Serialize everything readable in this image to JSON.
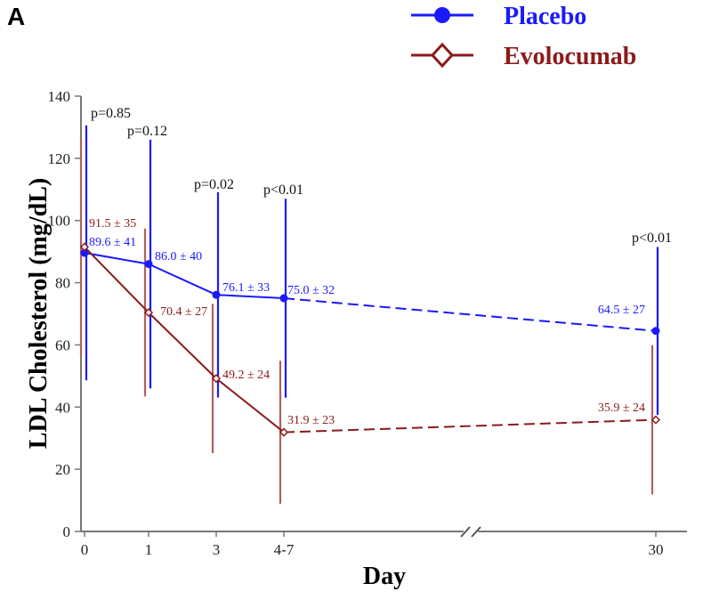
{
  "panel_label": "A",
  "colors": {
    "placebo": "#1a1aff",
    "evolocumab": "#8b1a1a",
    "evolocumab_errorbar": "#b06060",
    "axis": "#777777"
  },
  "chart_data": {
    "type": "line",
    "title": "",
    "xlabel": "Day",
    "ylabel": "LDL Cholesterol (mg/dL)",
    "ylim": [
      0,
      140
    ],
    "yticks": [
      0,
      20,
      40,
      60,
      80,
      100,
      120,
      140
    ],
    "categories": [
      "0",
      "1",
      "3",
      "4-7",
      "30"
    ],
    "axis_break_between": [
      "4-7",
      "30"
    ],
    "grid": false,
    "legend_position": "top-right",
    "series": [
      {
        "name": "Placebo",
        "marker": "filled-circle",
        "values": [
          89.6,
          86.0,
          76.1,
          75.0,
          64.5
        ],
        "sd": [
          41,
          40,
          33,
          32,
          27
        ],
        "labels": [
          "89.6 ± 41",
          "86.0 ± 40",
          "76.1 ± 33",
          "75.0 ± 32",
          "64.5 ± 27"
        ],
        "dashed_segment": [
          "4-7",
          "30"
        ]
      },
      {
        "name": "Evolocumab",
        "marker": "open-diamond",
        "values": [
          91.5,
          70.4,
          49.2,
          31.9,
          35.9
        ],
        "sd": [
          35,
          27,
          24,
          23,
          24
        ],
        "labels": [
          "91.5 ± 35",
          "70.4 ± 27",
          "49.2 ± 24",
          "31.9 ± 23",
          "35.9 ± 24"
        ],
        "dashed_segment": [
          "4-7",
          "30"
        ]
      }
    ],
    "annotations": [
      {
        "category": "0",
        "text": "p=0.85"
      },
      {
        "category": "1",
        "text": "p=0.12"
      },
      {
        "category": "3",
        "text": "p=0.02"
      },
      {
        "category": "4-7",
        "text": "p<0.01"
      },
      {
        "category": "30",
        "text": "p<0.01"
      }
    ]
  }
}
